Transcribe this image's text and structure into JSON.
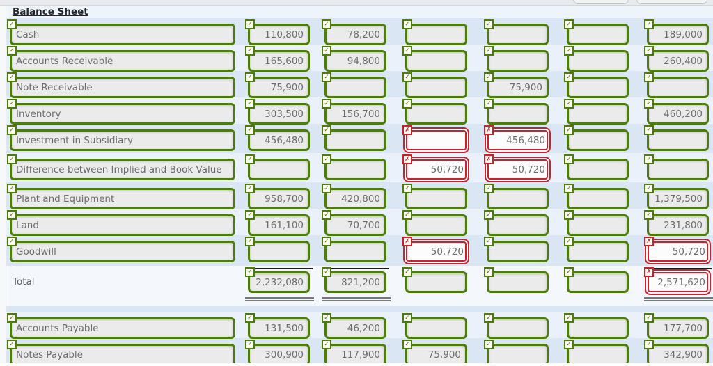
{
  "title": "Balance Sheet",
  "total_label": "Total",
  "status_icons": {
    "correct": "✓",
    "incorrect": "✗"
  },
  "colors": {
    "correct": "#4d7c0f",
    "incorrect": "#cd202c",
    "row_stripe": "#dbe6f4"
  },
  "rows": [
    {
      "label": "Cash",
      "is_total": false,
      "cells": [
        {
          "value": "110,800",
          "status": "correct"
        },
        {
          "value": "78,200",
          "status": "correct"
        },
        {
          "value": "",
          "status": "correct"
        },
        {
          "value": "",
          "status": "correct"
        },
        {
          "value": "",
          "status": "correct"
        },
        {
          "value": "189,000",
          "status": "correct"
        }
      ]
    },
    {
      "label": "Accounts Receivable",
      "is_total": false,
      "cells": [
        {
          "value": "165,600",
          "status": "correct"
        },
        {
          "value": "94,800",
          "status": "correct"
        },
        {
          "value": "",
          "status": "correct"
        },
        {
          "value": "",
          "status": "correct"
        },
        {
          "value": "",
          "status": "correct"
        },
        {
          "value": "260,400",
          "status": "correct"
        }
      ]
    },
    {
      "label": "Note Receivable",
      "is_total": false,
      "cells": [
        {
          "value": "75,900",
          "status": "correct"
        },
        {
          "value": "",
          "status": "correct"
        },
        {
          "value": "",
          "status": "correct"
        },
        {
          "value": "75,900",
          "status": "correct"
        },
        {
          "value": "",
          "status": "correct"
        },
        {
          "value": "",
          "status": "correct"
        }
      ]
    },
    {
      "label": "Inventory",
      "is_total": false,
      "cells": [
        {
          "value": "303,500",
          "status": "correct"
        },
        {
          "value": "156,700",
          "status": "correct"
        },
        {
          "value": "",
          "status": "correct"
        },
        {
          "value": "",
          "status": "correct"
        },
        {
          "value": "",
          "status": "correct"
        },
        {
          "value": "460,200",
          "status": "correct"
        }
      ]
    },
    {
      "label": "Investment in Subsidiary",
      "is_total": false,
      "cells": [
        {
          "value": "456,480",
          "status": "correct"
        },
        {
          "value": "",
          "status": "correct"
        },
        {
          "value": "",
          "status": "incorrect"
        },
        {
          "value": "456,480",
          "status": "incorrect"
        },
        {
          "value": "",
          "status": "correct"
        },
        {
          "value": "",
          "status": "correct"
        }
      ]
    },
    {
      "label": "Difference between Implied and Book Value",
      "is_total": false,
      "cells": [
        {
          "value": "",
          "status": "correct"
        },
        {
          "value": "",
          "status": "correct"
        },
        {
          "value": "50,720",
          "status": "incorrect"
        },
        {
          "value": "50,720",
          "status": "incorrect"
        },
        {
          "value": "",
          "status": "correct"
        },
        {
          "value": "",
          "status": "correct"
        }
      ]
    },
    {
      "label": "Plant and Equipment",
      "is_total": false,
      "cells": [
        {
          "value": "958,700",
          "status": "correct"
        },
        {
          "value": "420,800",
          "status": "correct"
        },
        {
          "value": "",
          "status": "correct"
        },
        {
          "value": "",
          "status": "correct"
        },
        {
          "value": "",
          "status": "correct"
        },
        {
          "value": "1,379,500",
          "status": "correct"
        }
      ]
    },
    {
      "label": "Land",
      "is_total": false,
      "cells": [
        {
          "value": "161,100",
          "status": "correct"
        },
        {
          "value": "70,700",
          "status": "correct"
        },
        {
          "value": "",
          "status": "correct"
        },
        {
          "value": "",
          "status": "correct"
        },
        {
          "value": "",
          "status": "correct"
        },
        {
          "value": "231,800",
          "status": "correct"
        }
      ]
    },
    {
      "label": "Goodwill",
      "is_total": false,
      "cells": [
        {
          "value": "",
          "status": "correct"
        },
        {
          "value": "",
          "status": "correct"
        },
        {
          "value": "50,720",
          "status": "incorrect"
        },
        {
          "value": "",
          "status": "correct"
        },
        {
          "value": "",
          "status": "correct"
        },
        {
          "value": "50,720",
          "status": "incorrect"
        }
      ]
    },
    {
      "label": "Total",
      "is_total": true,
      "cells": [
        {
          "value": "2,232,080",
          "status": "correct"
        },
        {
          "value": "821,200",
          "status": "correct"
        },
        {
          "value": "",
          "status": "correct"
        },
        {
          "value": "",
          "status": "correct"
        },
        {
          "value": "",
          "status": "correct"
        },
        {
          "value": "2,571,620",
          "status": "incorrect"
        }
      ]
    },
    {
      "label": "Accounts Payable",
      "is_total": false,
      "cells": [
        {
          "value": "131,500",
          "status": "correct"
        },
        {
          "value": "46,200",
          "status": "correct"
        },
        {
          "value": "",
          "status": "correct"
        },
        {
          "value": "",
          "status": "correct"
        },
        {
          "value": "",
          "status": "correct"
        },
        {
          "value": "177,700",
          "status": "correct"
        }
      ]
    },
    {
      "label": "Notes Payable",
      "is_total": false,
      "cells": [
        {
          "value": "300,900",
          "status": "correct"
        },
        {
          "value": "117,900",
          "status": "correct"
        },
        {
          "value": "75,900",
          "status": "correct"
        },
        {
          "value": "",
          "status": "correct"
        },
        {
          "value": "",
          "status": "correct"
        },
        {
          "value": "342,900",
          "status": "correct"
        }
      ]
    }
  ]
}
